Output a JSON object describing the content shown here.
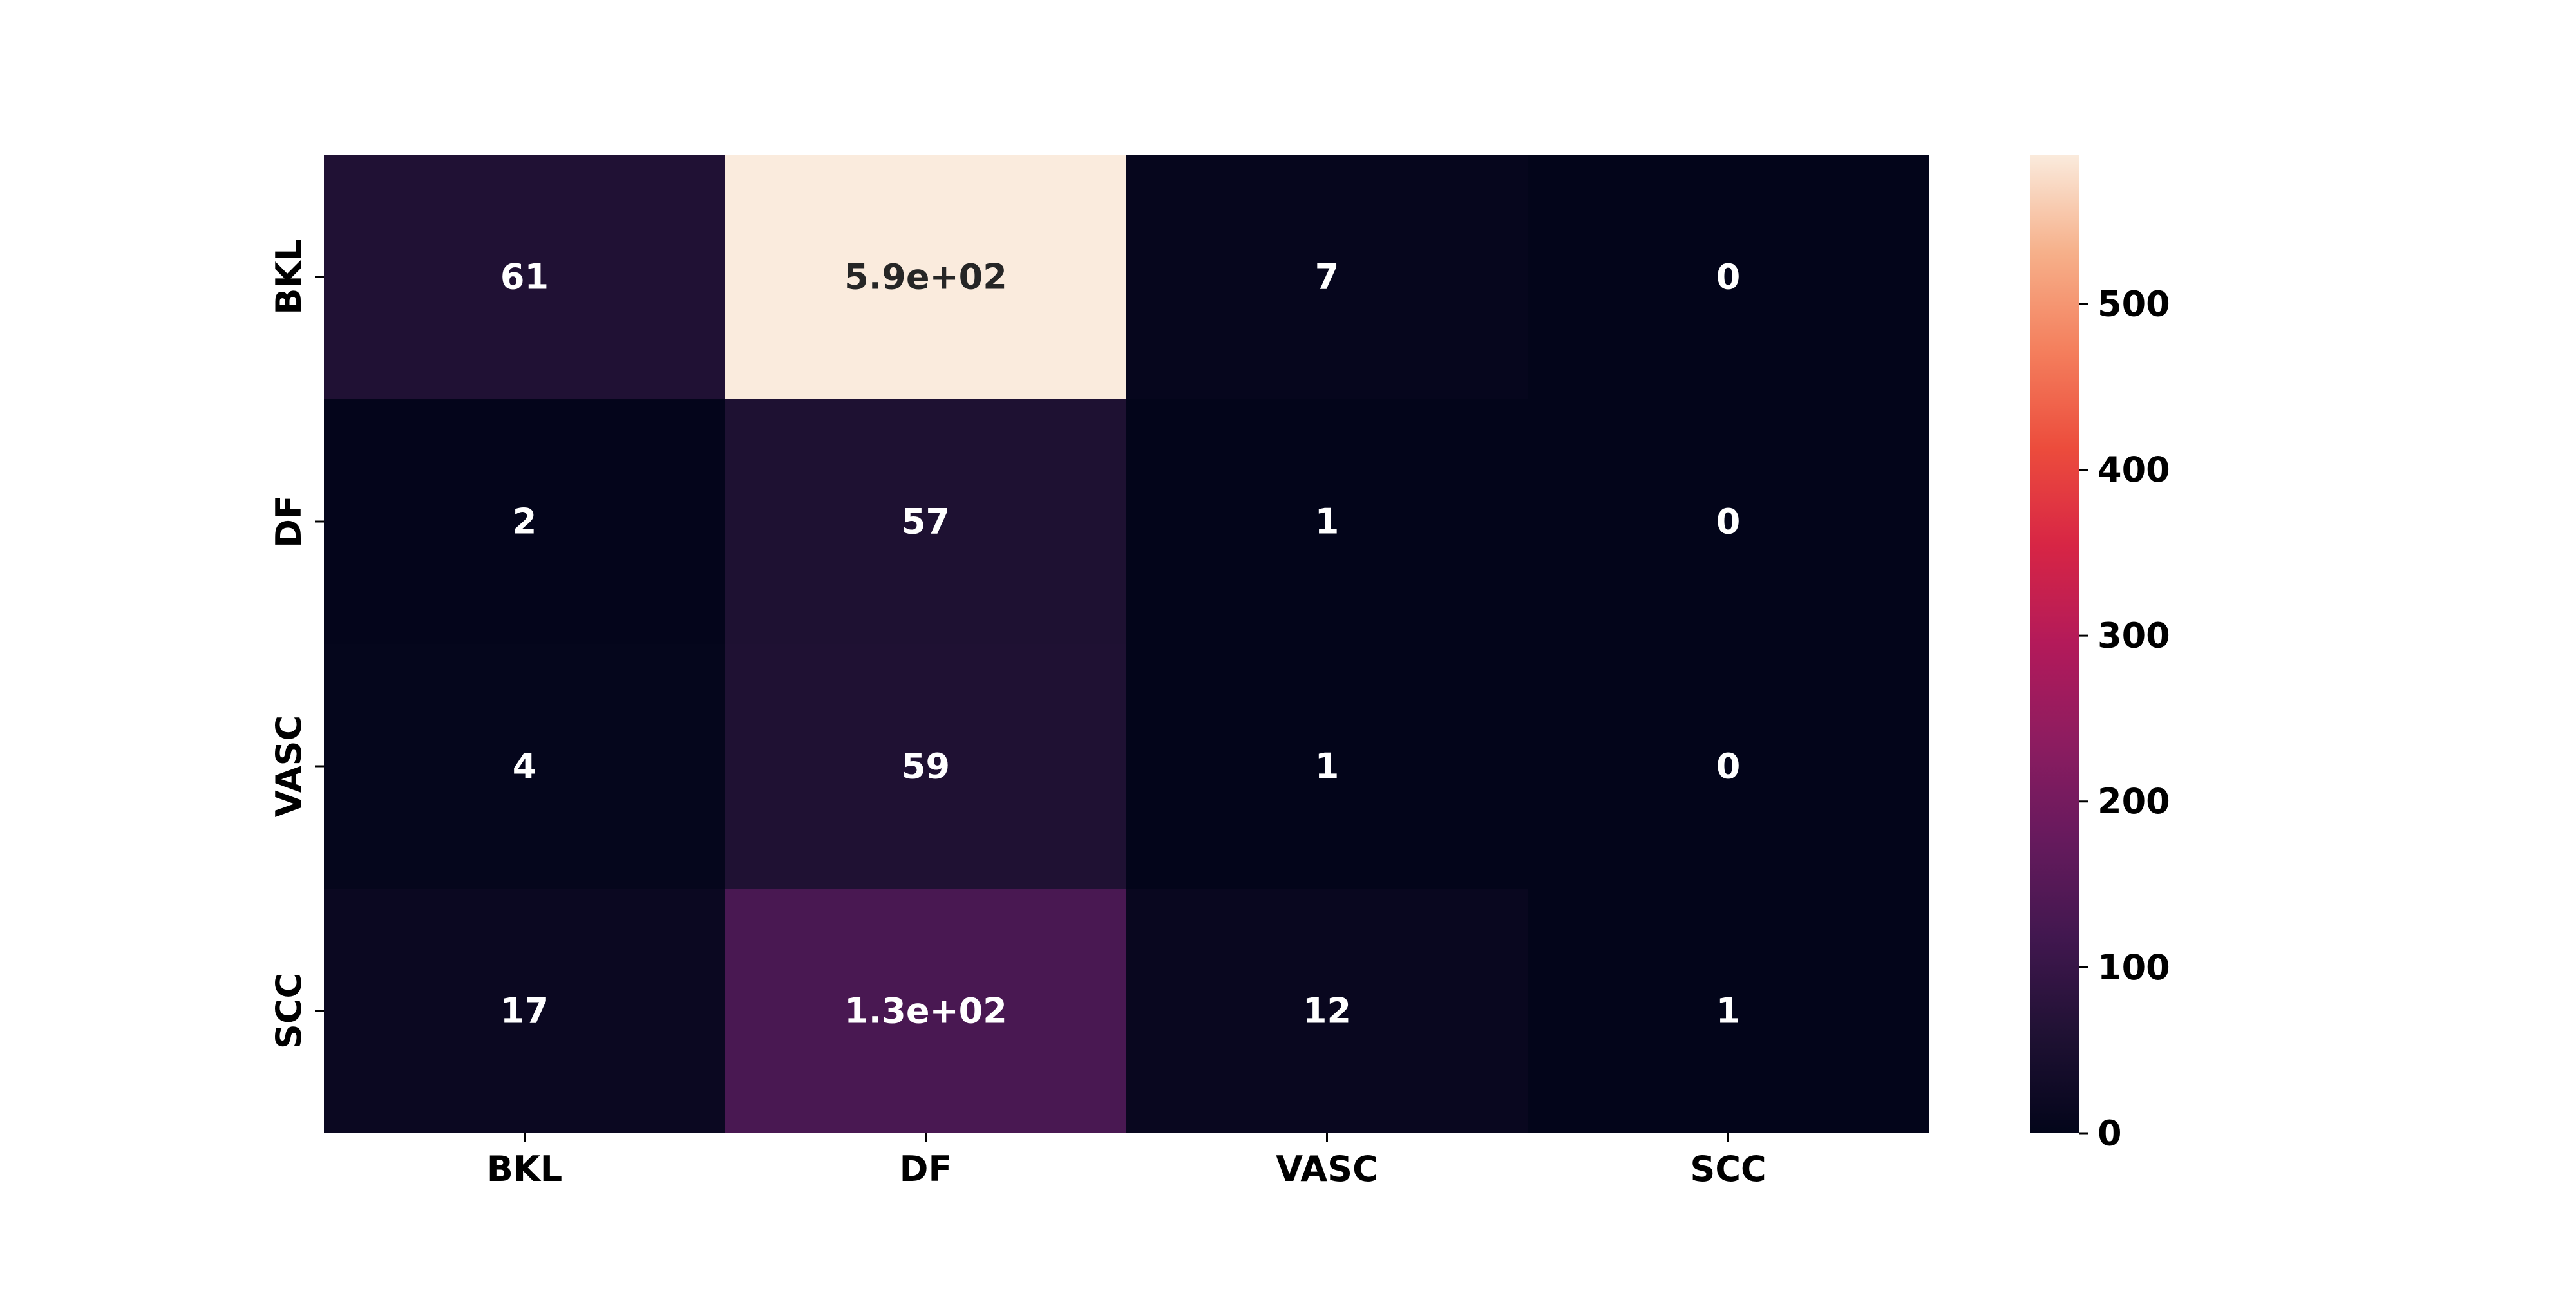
{
  "chart_data": {
    "type": "heatmap",
    "rows": [
      "BKL",
      "DF",
      "VASC",
      "SCC"
    ],
    "columns": [
      "BKL",
      "DF",
      "VASC",
      "SCC"
    ],
    "values": [
      [
        61,
        590,
        7,
        0
      ],
      [
        2,
        57,
        1,
        0
      ],
      [
        4,
        59,
        1,
        0
      ],
      [
        17,
        130,
        12,
        1
      ]
    ],
    "annotations": [
      [
        "61",
        "5.9e+02",
        "7",
        "0"
      ],
      [
        "2",
        "57",
        "1",
        "0"
      ],
      [
        "4",
        "59",
        "1",
        "0"
      ],
      [
        "17",
        "1.3e+02",
        "12",
        "1"
      ]
    ],
    "colorbar": {
      "colormap": "rocket",
      "range": [
        0,
        590
      ],
      "ticks": [
        0,
        100,
        200,
        300,
        400,
        500
      ]
    },
    "grid": false,
    "legend": "colorbar-right"
  }
}
